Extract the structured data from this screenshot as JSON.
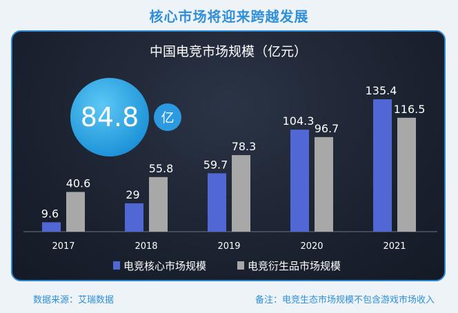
{
  "headline": "核心市场将迎来跨越发展",
  "highlight": {
    "value": "84.8",
    "unit": "亿"
  },
  "chart_data": {
    "type": "bar",
    "title": "中国电竞市场规模（亿元）",
    "categories": [
      "2017",
      "2018",
      "2019",
      "2020",
      "2021"
    ],
    "series": [
      {
        "name": "电竞核心市场规模",
        "values": [
          9.6,
          29,
          59.7,
          104.3,
          135.4
        ],
        "color": "#5067d4"
      },
      {
        "name": "电竞衍生品市场规模",
        "values": [
          40.6,
          55.8,
          78.3,
          96.7,
          116.5
        ],
        "color": "#a8a8a8"
      }
    ],
    "ylim": [
      0,
      140
    ],
    "grid": false,
    "legend": "bottom-center"
  },
  "footer": {
    "source": "数据来源：艾瑞数据",
    "note": "备注：电竞生态市场规模不包含游戏市场收入"
  }
}
